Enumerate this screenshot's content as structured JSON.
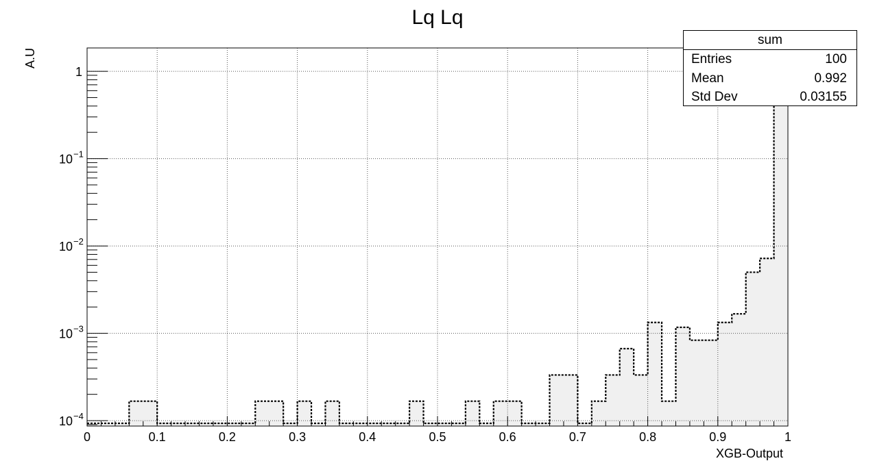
{
  "chart_data": {
    "type": "histogram",
    "title": "Lq Lq",
    "xlabel": "XGB-Output",
    "ylabel": "A.U",
    "xlim": [
      0,
      1
    ],
    "ylim": [
      8.67e-05,
      1.85
    ],
    "y_scale": "log",
    "grid": true,
    "x_ticks": [
      "0",
      "0.1",
      "0.2",
      "0.3",
      "0.4",
      "0.5",
      "0.6",
      "0.7",
      "0.8",
      "0.9",
      "1"
    ],
    "y_ticks": [
      {
        "value": 1,
        "base": "1",
        "exp": ""
      },
      {
        "value": 0.1,
        "base": "10",
        "exp": "−1"
      },
      {
        "value": 0.01,
        "base": "10",
        "exp": "−2"
      },
      {
        "value": 0.001,
        "base": "10",
        "exp": "−3"
      },
      {
        "value": 0.0001,
        "base": "10",
        "exp": "−4"
      }
    ],
    "bin_width": 0.02,
    "bins_x_start": [
      0.06,
      0.08,
      0.24,
      0.26,
      0.3,
      0.34,
      0.46,
      0.54,
      0.58,
      0.6,
      0.66,
      0.68,
      0.72,
      0.74,
      0.76,
      0.78,
      0.8,
      0.82,
      0.84,
      0.86,
      0.88,
      0.9,
      0.92,
      0.94,
      0.96,
      0.98
    ],
    "values": [
      0.000167,
      0.000167,
      0.000167,
      0.000167,
      0.000167,
      0.000167,
      0.000167,
      0.000167,
      0.000167,
      0.000167,
      0.000333,
      0.000333,
      0.000167,
      0.000333,
      0.000667,
      0.000333,
      0.00133,
      0.000167,
      0.00117,
      0.000833,
      0.000833,
      0.00133,
      0.00167,
      0.005,
      0.0072,
      0.98
    ],
    "series_style": {
      "fill": "#f0f0f0",
      "line": "#000000",
      "line_dash": "dotted"
    },
    "stats": {
      "title": "sum",
      "rows": [
        {
          "label": "Entries",
          "value": "100"
        },
        {
          "label": "Mean",
          "value": "0.992"
        },
        {
          "label": "Std Dev",
          "value": "0.03155"
        }
      ]
    }
  }
}
